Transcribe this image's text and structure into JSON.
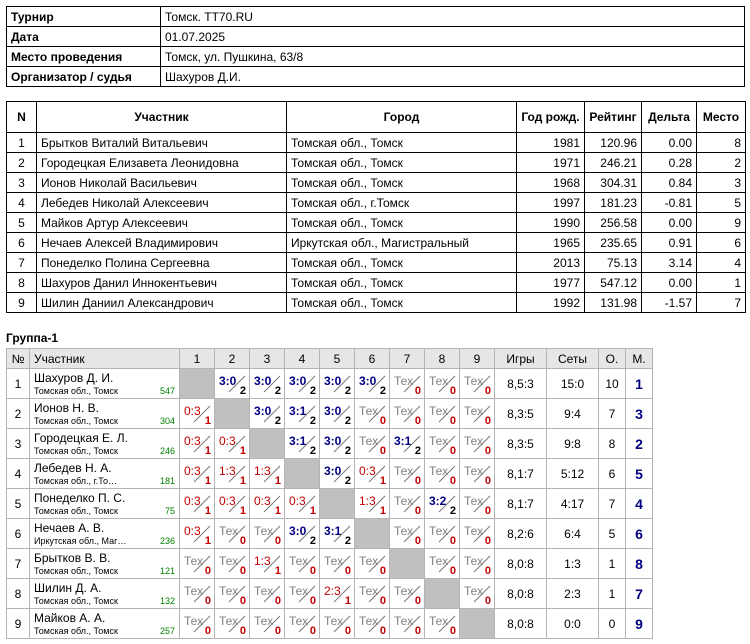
{
  "info": [
    {
      "label": "Турнир",
      "value": "Томск. TT70.RU"
    },
    {
      "label": "Дата",
      "value": "01.07.2025"
    },
    {
      "label": "Место проведения",
      "value": "Томск, ул. Пушкина, 63/8"
    },
    {
      "label": "Организатор / судья",
      "value": "Шахуров Д.И."
    }
  ],
  "participants": {
    "headers": [
      "N",
      "Участник",
      "Город",
      "Год рожд.",
      "Рейтинг",
      "Дельта",
      "Место"
    ],
    "rows": [
      [
        "1",
        "Брытков Виталий Витальевич",
        "Томская обл., Томск",
        "1981",
        "120.96",
        "0.00",
        "8"
      ],
      [
        "2",
        "Городецкая Елизавета Леонидовна",
        "Томская обл., Томск",
        "1971",
        "246.21",
        "0.28",
        "2"
      ],
      [
        "3",
        "Ионов Николай Васильевич",
        "Томская обл., Томск",
        "1968",
        "304.31",
        "0.84",
        "3"
      ],
      [
        "4",
        "Лебедев Николай Алексеевич",
        "Томская обл., г.Томск",
        "1997",
        "181.23",
        "-0.81",
        "5"
      ],
      [
        "5",
        "Майков Артур Алексеевич",
        "Томская обл., Томск",
        "1990",
        "256.58",
        "0.00",
        "9"
      ],
      [
        "6",
        "Нечаев Алексей Владимирович",
        "Иркутская обл., Магистральный",
        "1965",
        "235.65",
        "0.91",
        "6"
      ],
      [
        "7",
        "Понеделко Полина Сергеевна",
        "Томская обл., Томск",
        "2013",
        "75.13",
        "3.14",
        "4"
      ],
      [
        "8",
        "Шахуров Данил Иннокентьевич",
        "Томская обл., Томск",
        "1977",
        "547.12",
        "0.00",
        "1"
      ],
      [
        "9",
        "Шилин Даниил Александрович",
        "Томская обл., Томск",
        "1992",
        "131.98",
        "-1.57",
        "7"
      ]
    ]
  },
  "group": {
    "title": "Группа-1",
    "headers": {
      "num": "№",
      "name": "Участник",
      "cols": [
        "1",
        "2",
        "3",
        "4",
        "5",
        "6",
        "7",
        "8",
        "9"
      ],
      "games": "Игры",
      "sets": "Сеты",
      "points": "О.",
      "place": "М."
    },
    "rows": [
      {
        "n": "1",
        "name": "Шахуров Д. И.",
        "city": "Томская обл., Томск",
        "rating": "547",
        "games": "8,5:3",
        "sets": "15:0",
        "points": "10",
        "place": "1",
        "cells": [
          null,
          [
            "3:0",
            "2",
            "win"
          ],
          [
            "3:0",
            "2",
            "win"
          ],
          [
            "3:0",
            "2",
            "win"
          ],
          [
            "3:0",
            "2",
            "win"
          ],
          [
            "3:0",
            "2",
            "win"
          ],
          [
            "Тех",
            "0",
            "tech"
          ],
          [
            "Тех",
            "0",
            "tech"
          ],
          [
            "Тех",
            "0",
            "tech"
          ]
        ]
      },
      {
        "n": "2",
        "name": "Ионов Н. В.",
        "city": "Томская обл., Томск",
        "rating": "304",
        "games": "8,3:5",
        "sets": "9:4",
        "points": "7",
        "place": "3",
        "cells": [
          [
            "0:3",
            "1",
            "loss"
          ],
          null,
          [
            "3:0",
            "2",
            "win"
          ],
          [
            "3:1",
            "2",
            "win"
          ],
          [
            "3:0",
            "2",
            "win"
          ],
          [
            "Тех",
            "0",
            "tech"
          ],
          [
            "Тех",
            "0",
            "tech"
          ],
          [
            "Тех",
            "0",
            "tech"
          ],
          [
            "Тех",
            "0",
            "tech"
          ]
        ]
      },
      {
        "n": "3",
        "name": "Городецкая Е. Л.",
        "city": "Томская обл., Томск",
        "rating": "246",
        "games": "8,3:5",
        "sets": "9:8",
        "points": "8",
        "place": "2",
        "cells": [
          [
            "0:3",
            "1",
            "loss"
          ],
          [
            "0:3",
            "1",
            "loss"
          ],
          null,
          [
            "3:1",
            "2",
            "win"
          ],
          [
            "3:0",
            "2",
            "win"
          ],
          [
            "Тех",
            "0",
            "tech"
          ],
          [
            "3:1",
            "2",
            "win"
          ],
          [
            "Тех",
            "0",
            "tech"
          ],
          [
            "Тех",
            "0",
            "tech"
          ]
        ]
      },
      {
        "n": "4",
        "name": "Лебедев Н. А.",
        "city": "Томская обл., г.То…",
        "rating": "181",
        "games": "8,1:7",
        "sets": "5:12",
        "points": "6",
        "place": "5",
        "cells": [
          [
            "0:3",
            "1",
            "loss"
          ],
          [
            "1:3",
            "1",
            "loss"
          ],
          [
            "1:3",
            "1",
            "loss"
          ],
          null,
          [
            "3:0",
            "2",
            "win"
          ],
          [
            "0:3",
            "1",
            "loss"
          ],
          [
            "Тех",
            "0",
            "tech"
          ],
          [
            "Тех",
            "0",
            "tech"
          ],
          [
            "Тех",
            "0",
            "tech"
          ]
        ]
      },
      {
        "n": "5",
        "name": "Понеделко П. С.",
        "city": "Томская обл., Томск",
        "rating": "75",
        "games": "8,1:7",
        "sets": "4:17",
        "points": "7",
        "place": "4",
        "cells": [
          [
            "0:3",
            "1",
            "loss"
          ],
          [
            "0:3",
            "1",
            "loss"
          ],
          [
            "0:3",
            "1",
            "loss"
          ],
          [
            "0:3",
            "1",
            "loss"
          ],
          null,
          [
            "1:3",
            "1",
            "loss"
          ],
          [
            "Тех",
            "0",
            "tech"
          ],
          [
            "3:2",
            "2",
            "win"
          ],
          [
            "Тех",
            "0",
            "tech"
          ]
        ]
      },
      {
        "n": "6",
        "name": "Нечаев А. В.",
        "city": "Иркутская обл., Маг…",
        "rating": "236",
        "games": "8,2:6",
        "sets": "6:4",
        "points": "5",
        "place": "6",
        "cells": [
          [
            "0:3",
            "1",
            "loss"
          ],
          [
            "Тех",
            "0",
            "tech"
          ],
          [
            "Тех",
            "0",
            "tech"
          ],
          [
            "3:0",
            "2",
            "win"
          ],
          [
            "3:1",
            "2",
            "win"
          ],
          null,
          [
            "Тех",
            "0",
            "tech"
          ],
          [
            "Тех",
            "0",
            "tech"
          ],
          [
            "Тех",
            "0",
            "tech"
          ]
        ]
      },
      {
        "n": "7",
        "name": "Брытков В. В.",
        "city": "Томская обл., Томск",
        "rating": "121",
        "games": "8,0:8",
        "sets": "1:3",
        "points": "1",
        "place": "8",
        "cells": [
          [
            "Тех",
            "0",
            "tech"
          ],
          [
            "Тех",
            "0",
            "tech"
          ],
          [
            "1:3",
            "1",
            "loss"
          ],
          [
            "Тех",
            "0",
            "tech"
          ],
          [
            "Тех",
            "0",
            "tech"
          ],
          [
            "Тех",
            "0",
            "tech"
          ],
          null,
          [
            "Тех",
            "0",
            "tech"
          ],
          [
            "Тех",
            "0",
            "tech"
          ]
        ]
      },
      {
        "n": "8",
        "name": "Шилин Д. А.",
        "city": "Томская обл., Томск",
        "rating": "132",
        "games": "8,0:8",
        "sets": "2:3",
        "points": "1",
        "place": "7",
        "cells": [
          [
            "Тех",
            "0",
            "tech"
          ],
          [
            "Тех",
            "0",
            "tech"
          ],
          [
            "Тех",
            "0",
            "tech"
          ],
          [
            "Тех",
            "0",
            "tech"
          ],
          [
            "2:3",
            "1",
            "loss"
          ],
          [
            "Тех",
            "0",
            "tech"
          ],
          [
            "Тех",
            "0",
            "tech"
          ],
          null,
          [
            "Тех",
            "0",
            "tech"
          ]
        ]
      },
      {
        "n": "9",
        "name": "Майков А. А.",
        "city": "Томская обл., Томск",
        "rating": "257",
        "games": "8,0:8",
        "sets": "0:0",
        "points": "0",
        "place": "9",
        "cells": [
          [
            "Тех",
            "0",
            "tech"
          ],
          [
            "Тех",
            "0",
            "tech"
          ],
          [
            "Тех",
            "0",
            "tech"
          ],
          [
            "Тех",
            "0",
            "tech"
          ],
          [
            "Тех",
            "0",
            "tech"
          ],
          [
            "Тех",
            "0",
            "tech"
          ],
          [
            "Тех",
            "0",
            "tech"
          ],
          [
            "Тех",
            "0",
            "tech"
          ],
          null
        ]
      }
    ]
  }
}
